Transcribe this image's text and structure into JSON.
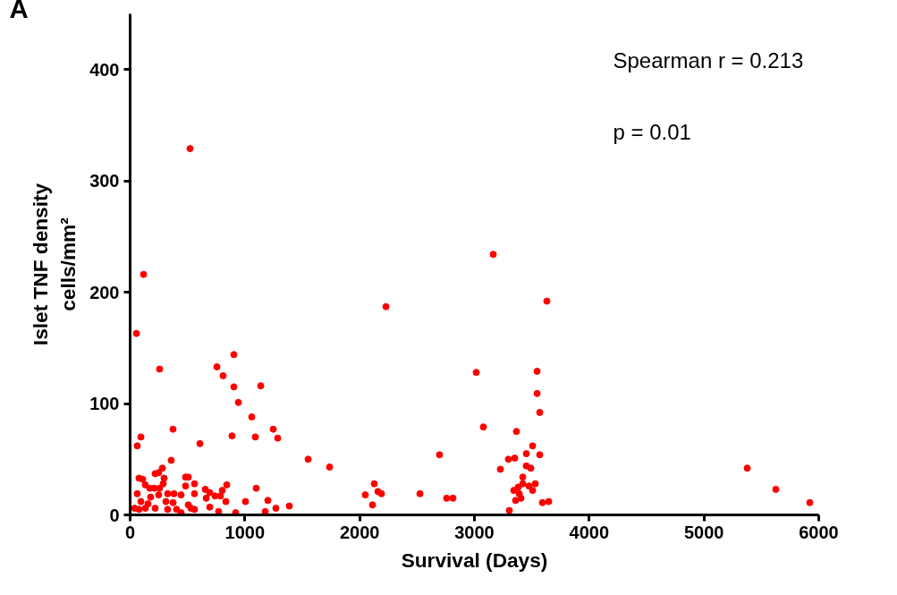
{
  "chart_data": {
    "type": "scatter",
    "xlabel": "Survival (Days)",
    "ylabel": "Islet TNF density\ncells/mm²",
    "annotations": [
      "A",
      "Spearman r = 0.213",
      "p = 0.01"
    ],
    "xlim": [
      0,
      6000
    ],
    "ylim": [
      0,
      450
    ],
    "xticks": [
      0,
      1000,
      2000,
      3000,
      4000,
      5000,
      6000
    ],
    "yticks": [
      0,
      100,
      200,
      300,
      400
    ],
    "grid": false,
    "marker": "circle",
    "series": [
      {
        "color": "#ff0000",
        "x": [
          257,
          904,
          756,
          810,
          904,
          1138,
          943,
          1060,
          1247,
          374,
          94,
          62,
          888,
          1091,
          1286,
          608,
          358,
          281,
          249,
          218,
          296,
          78,
          109,
          132,
          171,
          210,
          257,
          288,
          483,
          507,
          483,
          561,
          62,
          179,
          249,
          327,
          382,
          444,
          561,
          655,
          694,
          803,
          842,
          663,
          740,
          787,
          1099,
          94,
          156,
          312,
          374,
          507,
          530,
          561,
          694,
          834,
          1005,
          1200,
          1270,
          1387,
          39,
          78,
          132,
          218,
          327,
          405,
          444,
          771,
          919,
          1177,
          522,
          117,
          55,
          1551,
          1738,
          2229,
          2049,
          2127,
          2112,
          2159,
          2190,
          2525,
          2696,
          2758,
          2813,
          3016,
          3164,
          3078,
          3631,
          3366,
          3546,
          3546,
          3569,
          3507,
          3452,
          3569,
          3351,
          3296,
          3226,
          3452,
          3491,
          3421,
          3421,
          3382,
          3343,
          3475,
          3530,
          3507,
          3390,
          3359,
          3405,
          3592,
          3647,
          3304,
          5377,
          5626,
          5922
        ],
        "values": [
          131,
          144,
          133,
          125,
          115,
          116,
          101,
          88,
          77,
          77,
          70,
          62,
          71,
          70,
          69,
          64,
          49,
          42,
          38,
          37,
          33,
          33,
          32,
          27,
          24,
          24,
          24,
          28,
          34,
          34,
          26,
          28,
          19,
          16,
          18,
          19,
          19,
          18,
          19,
          23,
          20,
          22,
          27,
          15,
          17,
          17,
          24,
          12,
          10,
          12,
          11,
          9,
          6,
          5,
          7,
          12,
          12,
          13,
          6,
          8,
          6,
          5,
          6,
          6,
          5,
          5,
          2,
          3,
          2,
          3,
          329,
          216,
          163,
          50,
          43,
          187,
          18,
          28,
          9,
          21,
          19,
          19,
          54,
          15,
          15,
          128,
          234,
          79,
          192,
          75,
          129,
          109,
          92,
          62,
          55,
          54,
          51,
          50,
          41,
          44,
          42,
          34,
          28,
          25,
          22,
          26,
          28,
          22,
          19,
          13,
          15,
          11,
          12,
          4,
          42,
          23,
          11
        ]
      }
    ]
  }
}
